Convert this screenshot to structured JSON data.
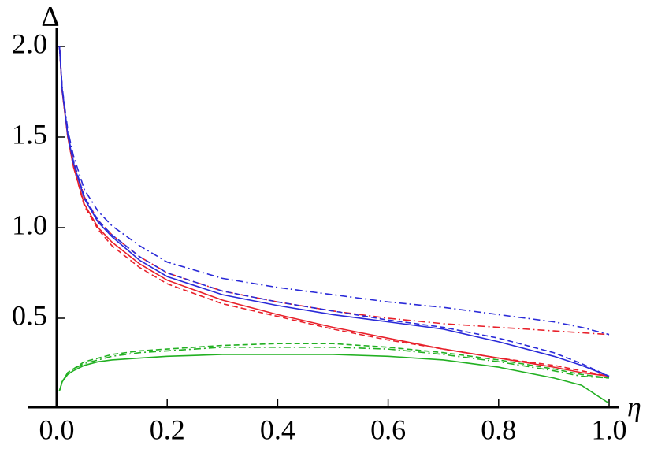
{
  "chart_data": {
    "type": "line",
    "xlabel": "η",
    "ylabel": "Δ",
    "x": [
      0.005,
      0.01,
      0.02,
      0.03,
      0.05,
      0.075,
      0.1,
      0.15,
      0.2,
      0.3,
      0.4,
      0.5,
      0.6,
      0.7,
      0.8,
      0.9,
      0.95,
      1.0
    ],
    "series": [
      {
        "color": "#e8202a",
        "dash": "solid",
        "values": [
          2.0,
          1.75,
          1.5,
          1.34,
          1.13,
          1.0,
          0.92,
          0.8,
          0.71,
          0.6,
          0.52,
          0.45,
          0.39,
          0.33,
          0.28,
          0.23,
          0.2,
          0.18
        ]
      },
      {
        "color": "#e8202a",
        "dash": "dashed",
        "values": [
          2.0,
          1.75,
          1.5,
          1.34,
          1.12,
          0.99,
          0.9,
          0.78,
          0.69,
          0.58,
          0.51,
          0.44,
          0.38,
          0.33,
          0.28,
          0.24,
          0.21,
          0.18
        ]
      },
      {
        "color": "#e8202a",
        "dash": "dashdot",
        "values": [
          2.0,
          1.76,
          1.52,
          1.37,
          1.17,
          1.04,
          0.96,
          0.84,
          0.75,
          0.65,
          0.59,
          0.54,
          0.5,
          0.47,
          0.45,
          0.43,
          0.42,
          0.41
        ]
      },
      {
        "color": "#2a2ad8",
        "dash": "solid",
        "values": [
          2.0,
          1.76,
          1.51,
          1.36,
          1.16,
          1.03,
          0.95,
          0.82,
          0.73,
          0.63,
          0.57,
          0.52,
          0.48,
          0.44,
          0.37,
          0.29,
          0.24,
          0.18
        ]
      },
      {
        "color": "#2a2ad8",
        "dash": "dashed",
        "values": [
          2.0,
          1.76,
          1.52,
          1.37,
          1.17,
          1.04,
          0.96,
          0.84,
          0.75,
          0.65,
          0.59,
          0.54,
          0.49,
          0.45,
          0.39,
          0.31,
          0.25,
          0.18
        ]
      },
      {
        "color": "#2a2ad8",
        "dash": "dashdot",
        "values": [
          2.0,
          1.77,
          1.54,
          1.4,
          1.21,
          1.09,
          1.01,
          0.9,
          0.81,
          0.72,
          0.67,
          0.63,
          0.59,
          0.56,
          0.52,
          0.48,
          0.45,
          0.41
        ]
      },
      {
        "color": "#22b022",
        "dash": "solid",
        "values": [
          0.1,
          0.15,
          0.19,
          0.21,
          0.24,
          0.26,
          0.27,
          0.28,
          0.29,
          0.3,
          0.3,
          0.3,
          0.29,
          0.27,
          0.23,
          0.17,
          0.13,
          0.03
        ]
      },
      {
        "color": "#22b022",
        "dash": "dashed",
        "values": [
          0.1,
          0.15,
          0.2,
          0.22,
          0.26,
          0.28,
          0.3,
          0.32,
          0.33,
          0.35,
          0.36,
          0.36,
          0.34,
          0.31,
          0.27,
          0.22,
          0.19,
          0.17
        ]
      },
      {
        "color": "#22b022",
        "dash": "dashdot",
        "values": [
          0.1,
          0.15,
          0.2,
          0.22,
          0.25,
          0.27,
          0.29,
          0.31,
          0.32,
          0.34,
          0.34,
          0.34,
          0.33,
          0.3,
          0.26,
          0.21,
          0.18,
          0.17
        ]
      }
    ],
    "xlim": [
      0,
      1.0
    ],
    "ylim": [
      0,
      2.0
    ],
    "xticks": [
      {
        "value": 0,
        "label": "0.0"
      },
      0.2,
      0.4,
      0.6,
      0.8,
      {
        "value": 1,
        "label": "1.0"
      }
    ],
    "yticks": [
      0.5,
      {
        "value": 1,
        "label": "1.0"
      },
      1.5,
      {
        "value": 2,
        "label": "2.0"
      }
    ],
    "grid": false
  }
}
